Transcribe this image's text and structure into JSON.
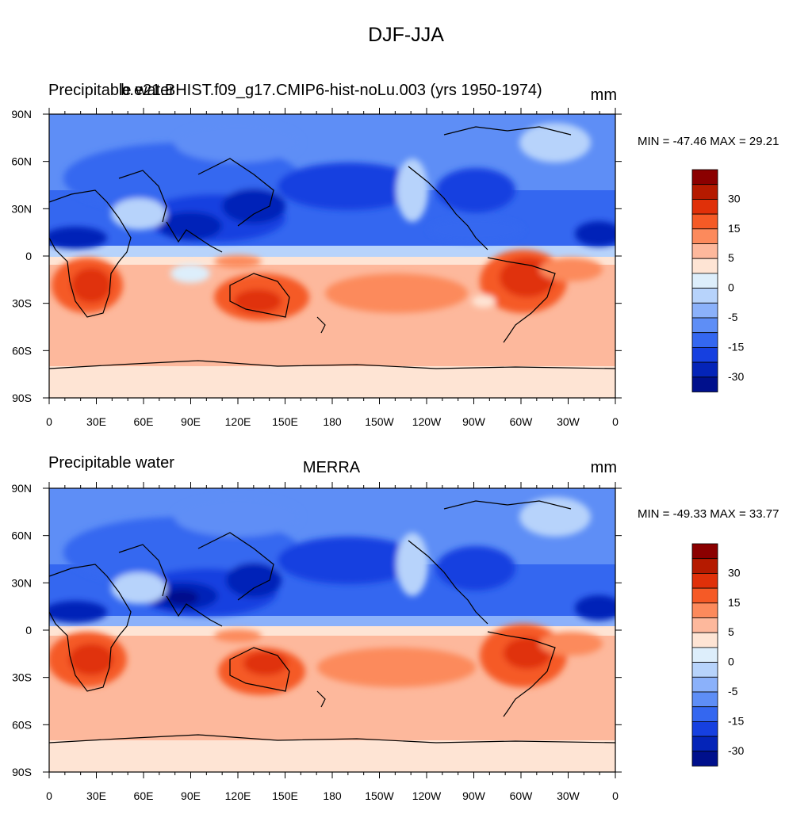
{
  "title": "DJF-JJA",
  "panels": [
    {
      "left_label": "Precipitable water",
      "center_label": "b.e21.BHIST.f09_g17.CMIP6-hist-noLu.003 (yrs 1950-1974)",
      "units": "mm",
      "minmax": "MIN = -47.46 MAX =  29.21"
    },
    {
      "left_label": "Precipitable water",
      "center_label": "MERRA",
      "units": "mm",
      "minmax": "MIN = -49.33 MAX =  33.77"
    }
  ],
  "x_ticks": [
    "0",
    "30E",
    "60E",
    "90E",
    "120E",
    "150E",
    "180",
    "150W",
    "120W",
    "90W",
    "60W",
    "30W",
    "0"
  ],
  "y_ticks": [
    "90N",
    "60N",
    "30N",
    "0",
    "30S",
    "60S",
    "90S"
  ],
  "colorbar": {
    "labels": [
      "30",
      "15",
      "5",
      "0",
      "-5",
      "-15",
      "-30"
    ],
    "colors": [
      "#8b0000",
      "#b51a00",
      "#e03009",
      "#f55a26",
      "#fc8a5c",
      "#fdb89c",
      "#fee4d4",
      "#ddeefb",
      "#b7d3fb",
      "#8bb1fa",
      "#5e8ef6",
      "#3467f0",
      "#1640e0",
      "#0424b8",
      "#00108c"
    ]
  },
  "legend_colors": {
    "dry_strong": "#00108c",
    "dry": "#3467f0",
    "neutral_neg": "#ddeefb",
    "neutral_pos": "#fee4d4",
    "wet": "#fc8a5c",
    "wet_strong": "#b51a00"
  }
}
